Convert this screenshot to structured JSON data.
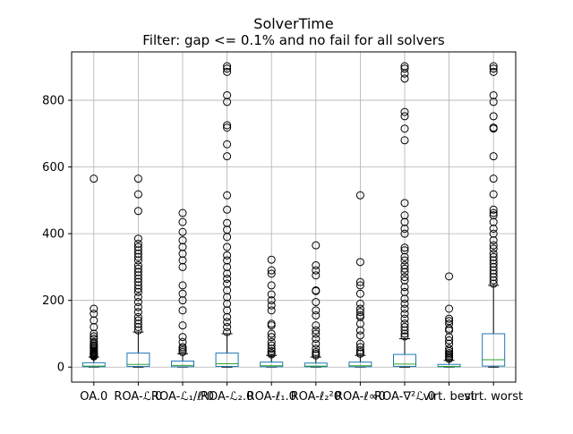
{
  "chart_data": {
    "type": "box",
    "title": "SolverTime",
    "subtitle": "Filter: gap <= 0.1% and no fail for all solvers",
    "xlabel": "",
    "ylabel": "",
    "ylim": [
      -45,
      945
    ],
    "yticks": [
      0,
      200,
      400,
      600,
      800
    ],
    "grid": true,
    "colors": {
      "box": "#1f77b4",
      "median": "#2ca02c",
      "whisker": "#000000",
      "flier": "#000000",
      "grid": "#b0b0b0"
    },
    "categories": [
      "OA.0",
      "ROA-ℒ.0",
      "ROA-ℒ₁/ℓ¹0",
      "ROA-ℒ₂.0",
      "ROA-ℓ₁.0",
      "ROA-ℓ₂²0",
      "ROA-ℓ∞0",
      "ROA-∇²ℒ.0",
      "virt. best",
      "virt. worst"
    ],
    "boxes": [
      {
        "label": "OA.0",
        "whislo": 0,
        "q1": 1,
        "med": 3,
        "q3": 13,
        "whishi": 30,
        "fliers": [
          565,
          175,
          160,
          140,
          120,
          100,
          92,
          85,
          75,
          70,
          65,
          62,
          58,
          55,
          50,
          47,
          44,
          42,
          40,
          38,
          36,
          34,
          32
        ]
      },
      {
        "label": "ROA-ℒ.0",
        "whislo": 0,
        "q1": 2,
        "med": 8,
        "q3": 42,
        "whishi": 105,
        "fliers": [
          565,
          518,
          468,
          385,
          370,
          360,
          350,
          340,
          330,
          320,
          305,
          295,
          285,
          275,
          265,
          255,
          245,
          235,
          225,
          210,
          195,
          180,
          165,
          150,
          140,
          130,
          120,
          110
        ]
      },
      {
        "label": "ROA-ℒ₁/ℓ¹0",
        "whislo": 0,
        "q1": 1,
        "med": 5,
        "q3": 18,
        "whishi": 40,
        "fliers": [
          462,
          435,
          405,
          380,
          360,
          340,
          320,
          300,
          245,
          220,
          200,
          170,
          125,
          90,
          75,
          60,
          55,
          50,
          45
        ]
      },
      {
        "label": "ROA-ℒ₂.0",
        "whislo": 0,
        "q1": 2,
        "med": 10,
        "q3": 42,
        "whishi": 100,
        "fliers": [
          902,
          895,
          885,
          815,
          795,
          725,
          718,
          668,
          632,
          515,
          472,
          432,
          412,
          390,
          360,
          335,
          320,
          300,
          280,
          265,
          250,
          230,
          210,
          190,
          170,
          150,
          135,
          120,
          105
        ]
      },
      {
        "label": "ROA-ℓ₁.0",
        "whislo": 0,
        "q1": 1,
        "med": 4,
        "q3": 15,
        "whishi": 35,
        "fliers": [
          322,
          290,
          280,
          245,
          218,
          200,
          185,
          170,
          130,
          125,
          100,
          90,
          75,
          65,
          55,
          48,
          42,
          38
        ]
      },
      {
        "label": "ROA-ℓ₂²0",
        "whislo": 0,
        "q1": 1,
        "med": 3,
        "q3": 12,
        "whishi": 30,
        "fliers": [
          365,
          305,
          290,
          275,
          230,
          228,
          195,
          170,
          155,
          125,
          110,
          100,
          85,
          70,
          55,
          45,
          40,
          35
        ]
      },
      {
        "label": "ROA-ℓ∞0",
        "whislo": 0,
        "q1": 1,
        "med": 4,
        "q3": 15,
        "whishi": 35,
        "fliers": [
          515,
          315,
          255,
          245,
          220,
          190,
          175,
          165,
          155,
          150,
          130,
          110,
          95,
          70,
          60,
          50,
          45,
          40
        ]
      },
      {
        "label": "ROA-∇²ℒ.0",
        "whislo": 0,
        "q1": 2,
        "med": 9,
        "q3": 38,
        "whishi": 85,
        "fliers": [
          902,
          895,
          880,
          865,
          765,
          752,
          715,
          680,
          492,
          455,
          435,
          415,
          400,
          358,
          350,
          330,
          320,
          305,
          295,
          285,
          270,
          260,
          240,
          225,
          205,
          190,
          175,
          160,
          145,
          130,
          120,
          110,
          100,
          92
        ]
      },
      {
        "label": "virt. best",
        "whislo": 0,
        "q1": 1,
        "med": 2,
        "q3": 8,
        "whishi": 20,
        "fliers": [
          272,
          175,
          145,
          138,
          130,
          115,
          110,
          90,
          80,
          70,
          55,
          48,
          42,
          38,
          33,
          29,
          25
        ]
      },
      {
        "label": "virt. worst",
        "whislo": 0,
        "q1": 3,
        "med": 22,
        "q3": 100,
        "whishi": 245,
        "fliers": [
          902,
          895,
          885,
          815,
          795,
          752,
          718,
          715,
          632,
          565,
          518,
          472,
          462,
          455,
          435,
          415,
          400,
          380,
          365,
          355,
          340,
          330,
          320,
          310,
          300,
          290,
          280,
          270,
          260,
          250
        ]
      }
    ]
  }
}
